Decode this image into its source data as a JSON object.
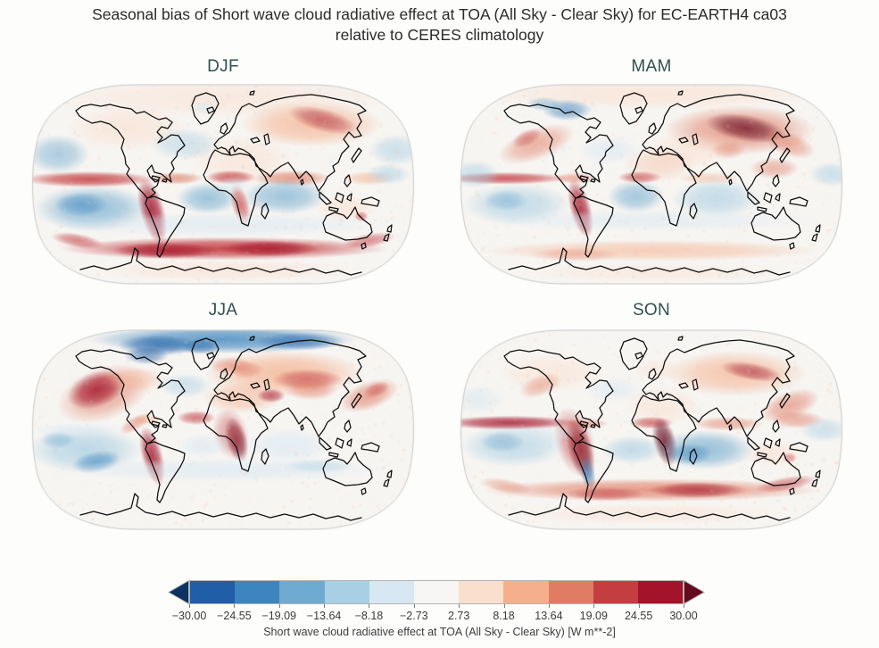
{
  "figure": {
    "title_line1": "Seasonal bias of Short wave cloud radiative effect at TOA (All Sky - Clear Sky) for EC-EARTH4 ca03",
    "title_line2": "relative to CERES climatology"
  },
  "seasons": [
    {
      "id": "djf",
      "label": "DJF"
    },
    {
      "id": "mam",
      "label": "MAM"
    },
    {
      "id": "jja",
      "label": "JJA"
    },
    {
      "id": "son",
      "label": "SON"
    }
  ],
  "colorbar": {
    "label": "Short wave cloud radiative effect at TOA (All Sky - Clear Sky) [W m**-2]",
    "ticks": [
      "−30.00",
      "−24.55",
      "−19.09",
      "−13.64",
      "−8.18",
      "−2.73",
      "2.73",
      "8.18",
      "13.64",
      "19.09",
      "24.55",
      "30.00"
    ],
    "under": "#0a3263",
    "over": "#670a1f",
    "segments": [
      "#205fa8",
      "#3c85bf",
      "#6fabd0",
      "#a8cfe4",
      "#d7e8f2",
      "#f7f6f5",
      "#fbdfcd",
      "#f5af8b",
      "#e07c64",
      "#c33d41",
      "#a31329"
    ],
    "title_color": "#31504e",
    "outline_color": "#c6c6c6"
  },
  "chart_data": {
    "type": "heatmap",
    "subtype": "global-map-bias",
    "projection": "Robinson",
    "title": "Seasonal bias of Short wave cloud radiative effect at TOA (All Sky - Clear Sky) for EC-EARTH4 ca03 relative to CERES climatology",
    "panels": [
      "DJF",
      "MAM",
      "JJA",
      "SON"
    ],
    "colorbar_ticks": [
      -30.0,
      -24.55,
      -19.09,
      -13.64,
      -8.18,
      -2.73,
      2.73,
      8.18,
      13.64,
      19.09,
      24.55,
      30.0
    ],
    "units": "W m**-2",
    "legend_position": "bottom",
    "colormap": "RdBu_r (discrete, extended both ends)",
    "field_blobs": {
      "djf": [
        [
          0.5,
          0.07,
          200,
          22,
          0,
          7,
          0.5
        ],
        [
          0.25,
          0.22,
          70,
          26,
          0,
          7,
          0.6
        ],
        [
          0.45,
          0.12,
          20,
          8,
          0,
          5,
          0.5
        ],
        [
          0.73,
          0.2,
          80,
          26,
          0,
          8,
          0.7
        ],
        [
          0.76,
          0.18,
          40,
          13,
          15,
          11,
          0.5
        ],
        [
          0.55,
          0.38,
          60,
          28,
          0,
          7,
          0.55
        ],
        [
          0.4,
          0.3,
          40,
          18,
          0,
          4,
          0.5
        ],
        [
          0.07,
          0.35,
          35,
          22,
          0,
          3,
          0.55
        ],
        [
          0.95,
          0.33,
          30,
          18,
          0,
          4,
          0.55
        ],
        [
          0.15,
          0.475,
          75,
          9,
          0,
          10,
          0.85
        ],
        [
          0.38,
          0.47,
          30,
          7,
          0,
          9,
          0.65
        ],
        [
          0.52,
          0.465,
          28,
          8,
          0,
          10,
          0.75
        ],
        [
          0.68,
          0.47,
          45,
          9,
          0,
          9,
          0.7
        ],
        [
          0.88,
          0.47,
          30,
          8,
          0,
          8,
          0.55
        ],
        [
          0.315,
          0.63,
          14,
          38,
          -15,
          11,
          0.85
        ],
        [
          0.545,
          0.6,
          10,
          24,
          -15,
          10,
          0.65
        ],
        [
          0.16,
          0.62,
          65,
          26,
          0,
          3,
          0.7
        ],
        [
          0.13,
          0.6,
          30,
          14,
          0,
          2,
          0.5
        ],
        [
          0.46,
          0.57,
          35,
          18,
          0,
          3,
          0.65
        ],
        [
          0.66,
          0.56,
          48,
          20,
          0,
          3,
          0.65
        ],
        [
          0.53,
          0.5,
          18,
          10,
          0,
          5,
          0.5
        ],
        [
          0.82,
          0.62,
          35,
          16,
          0,
          7,
          0.6
        ],
        [
          0.86,
          0.66,
          8,
          6,
          0,
          10,
          0.55
        ],
        [
          0.93,
          0.45,
          25,
          12,
          0,
          4,
          0.55
        ],
        [
          0.5,
          0.7,
          190,
          14,
          0,
          5,
          0.55
        ],
        [
          0.5,
          0.82,
          185,
          13,
          0,
          10,
          0.9
        ],
        [
          0.35,
          0.83,
          60,
          9,
          0,
          11,
          0.75
        ],
        [
          0.62,
          0.82,
          55,
          9,
          0,
          11,
          0.75
        ],
        [
          0.12,
          0.78,
          30,
          8,
          10,
          10,
          0.6
        ],
        [
          0.88,
          0.78,
          30,
          8,
          -10,
          10,
          0.55
        ],
        [
          0.5,
          0.93,
          150,
          12,
          0,
          7,
          0.55
        ]
      ],
      "mam": [
        [
          0.5,
          0.05,
          200,
          18,
          0,
          7,
          0.6
        ],
        [
          0.28,
          0.13,
          28,
          12,
          0,
          2,
          0.6
        ],
        [
          0.22,
          0.1,
          20,
          8,
          0,
          3,
          0.5
        ],
        [
          0.2,
          0.3,
          45,
          18,
          -20,
          9,
          0.55
        ],
        [
          0.175,
          0.27,
          18,
          9,
          -25,
          10,
          0.45
        ],
        [
          0.73,
          0.23,
          85,
          28,
          0,
          9,
          0.7
        ],
        [
          0.745,
          0.22,
          45,
          15,
          10,
          12,
          0.7
        ],
        [
          0.6,
          0.33,
          50,
          22,
          0,
          7,
          0.55
        ],
        [
          0.7,
          0.33,
          20,
          10,
          0,
          9,
          0.45
        ],
        [
          0.86,
          0.3,
          30,
          14,
          20,
          9,
          0.55
        ],
        [
          0.82,
          0.42,
          28,
          12,
          0,
          9,
          0.5
        ],
        [
          0.12,
          0.47,
          70,
          7,
          0,
          10,
          0.8
        ],
        [
          0.3,
          0.47,
          25,
          6,
          0,
          9,
          0.55
        ],
        [
          0.47,
          0.465,
          25,
          7,
          0,
          10,
          0.65
        ],
        [
          0.65,
          0.47,
          35,
          7,
          0,
          8,
          0.45
        ],
        [
          0.315,
          0.62,
          12,
          34,
          -15,
          11,
          0.8
        ],
        [
          0.39,
          0.33,
          35,
          16,
          0,
          5,
          0.55
        ],
        [
          0.04,
          0.45,
          28,
          16,
          0,
          4,
          0.55
        ],
        [
          0.97,
          0.45,
          25,
          14,
          0,
          4,
          0.55
        ],
        [
          0.15,
          0.6,
          60,
          24,
          0,
          4,
          0.65
        ],
        [
          0.12,
          0.58,
          25,
          12,
          0,
          3,
          0.45
        ],
        [
          0.46,
          0.56,
          32,
          18,
          0,
          3,
          0.6
        ],
        [
          0.67,
          0.57,
          50,
          22,
          0,
          4,
          0.65
        ],
        [
          0.5,
          0.68,
          190,
          12,
          0,
          5,
          0.5
        ],
        [
          0.5,
          0.83,
          190,
          12,
          0,
          8,
          0.55
        ],
        [
          0.3,
          0.85,
          50,
          8,
          0,
          9,
          0.35
        ],
        [
          0.5,
          0.94,
          150,
          10,
          0,
          7,
          0.45
        ],
        [
          0.52,
          0.4,
          40,
          20,
          0,
          8,
          0.35
        ]
      ],
      "jja": [
        [
          0.5,
          0.05,
          150,
          16,
          0,
          2,
          0.8
        ],
        [
          0.33,
          0.08,
          45,
          12,
          0,
          1,
          0.65
        ],
        [
          0.7,
          0.06,
          50,
          10,
          0,
          1,
          0.55
        ],
        [
          0.3,
          0.13,
          25,
          10,
          0,
          1,
          0.55
        ],
        [
          0.19,
          0.32,
          55,
          30,
          -20,
          9,
          0.6
        ],
        [
          0.17,
          0.3,
          34,
          20,
          -20,
          11,
          0.8
        ],
        [
          0.66,
          0.22,
          90,
          26,
          0,
          8,
          0.75
        ],
        [
          0.72,
          0.25,
          40,
          12,
          0,
          10,
          0.6
        ],
        [
          0.56,
          0.2,
          20,
          10,
          0,
          9,
          0.5
        ],
        [
          0.52,
          0.18,
          25,
          10,
          0,
          9,
          0.5
        ],
        [
          0.55,
          0.34,
          45,
          18,
          0,
          8,
          0.55
        ],
        [
          0.625,
          0.33,
          16,
          8,
          0,
          11,
          0.6
        ],
        [
          0.73,
          0.3,
          30,
          12,
          0,
          9,
          0.55
        ],
        [
          0.88,
          0.33,
          35,
          16,
          -20,
          9,
          0.65
        ],
        [
          0.9,
          0.3,
          15,
          8,
          -20,
          10,
          0.45
        ],
        [
          0.43,
          0.44,
          22,
          8,
          0,
          10,
          0.65
        ],
        [
          0.3,
          0.45,
          18,
          6,
          0,
          8,
          0.45
        ],
        [
          0.27,
          0.47,
          20,
          8,
          -30,
          9,
          0.5
        ],
        [
          0.535,
          0.55,
          12,
          26,
          -15,
          12,
          0.75
        ],
        [
          0.52,
          0.52,
          20,
          30,
          -15,
          10,
          0.45
        ],
        [
          0.315,
          0.63,
          12,
          34,
          -15,
          11,
          0.8
        ],
        [
          0.14,
          0.6,
          65,
          26,
          0,
          4,
          0.75
        ],
        [
          0.17,
          0.66,
          28,
          12,
          -10,
          2,
          0.6
        ],
        [
          0.07,
          0.55,
          20,
          10,
          0,
          3,
          0.45
        ],
        [
          0.45,
          0.58,
          30,
          14,
          0,
          5,
          0.55
        ],
        [
          0.67,
          0.58,
          50,
          20,
          0,
          5,
          0.6
        ],
        [
          0.5,
          0.7,
          190,
          13,
          0,
          5,
          0.6
        ],
        [
          0.75,
          0.68,
          40,
          8,
          0,
          4,
          0.45
        ],
        [
          0.4,
          0.28,
          30,
          14,
          0,
          4,
          0.5
        ],
        [
          0.12,
          0.5,
          55,
          8,
          0,
          5,
          0.5
        ],
        [
          0.27,
          0.25,
          35,
          14,
          0,
          8,
          0.45
        ],
        [
          0.44,
          0.085,
          22,
          9,
          0,
          1,
          0.5
        ]
      ],
      "son": [
        [
          0.5,
          0.05,
          180,
          15,
          0,
          6,
          0.5
        ],
        [
          0.24,
          0.22,
          60,
          22,
          0,
          7,
          0.55
        ],
        [
          0.21,
          0.28,
          25,
          12,
          -20,
          9,
          0.45
        ],
        [
          0.72,
          0.22,
          80,
          26,
          0,
          8,
          0.65
        ],
        [
          0.76,
          0.21,
          35,
          10,
          10,
          11,
          0.55
        ],
        [
          0.52,
          0.2,
          30,
          12,
          0,
          7,
          0.45
        ],
        [
          0.53,
          0.38,
          45,
          22,
          0,
          7,
          0.55
        ],
        [
          0.13,
          0.465,
          75,
          8,
          0,
          11,
          0.8
        ],
        [
          0.33,
          0.47,
          25,
          6,
          0,
          9,
          0.55
        ],
        [
          0.5,
          0.465,
          25,
          7,
          0,
          10,
          0.65
        ],
        [
          0.7,
          0.47,
          40,
          8,
          0,
          9,
          0.55
        ],
        [
          0.88,
          0.45,
          30,
          10,
          0,
          9,
          0.55
        ],
        [
          0.86,
          0.38,
          35,
          16,
          -20,
          9,
          0.6
        ],
        [
          0.315,
          0.6,
          14,
          36,
          -15,
          12,
          0.8
        ],
        [
          0.3,
          0.56,
          22,
          40,
          -15,
          10,
          0.55
        ],
        [
          0.335,
          0.72,
          8,
          20,
          -10,
          2,
          0.65
        ],
        [
          0.535,
          0.56,
          13,
          28,
          -15,
          12,
          0.8
        ],
        [
          0.14,
          0.58,
          60,
          24,
          0,
          4,
          0.65
        ],
        [
          0.11,
          0.56,
          25,
          12,
          0,
          3,
          0.45
        ],
        [
          0.45,
          0.6,
          35,
          16,
          0,
          4,
          0.65
        ],
        [
          0.64,
          0.6,
          55,
          22,
          0,
          3,
          0.7
        ],
        [
          0.6,
          0.62,
          25,
          12,
          0,
          2,
          0.5
        ],
        [
          0.82,
          0.62,
          35,
          15,
          0,
          7,
          0.6
        ],
        [
          0.86,
          0.64,
          8,
          6,
          0,
          10,
          0.45
        ],
        [
          0.5,
          0.8,
          190,
          13,
          0,
          9,
          0.75
        ],
        [
          0.62,
          0.8,
          55,
          9,
          0,
          11,
          0.65
        ],
        [
          0.38,
          0.82,
          45,
          8,
          0,
          10,
          0.55
        ],
        [
          0.85,
          0.77,
          35,
          8,
          -10,
          10,
          0.55
        ],
        [
          0.12,
          0.78,
          30,
          8,
          10,
          9,
          0.45
        ],
        [
          0.5,
          0.92,
          150,
          12,
          0,
          7,
          0.5
        ],
        [
          0.05,
          0.35,
          30,
          16,
          0,
          5,
          0.55
        ],
        [
          0.95,
          0.5,
          28,
          14,
          0,
          4,
          0.5
        ],
        [
          0.4,
          0.3,
          32,
          14,
          0,
          5,
          0.5
        ],
        [
          0.22,
          0.52,
          40,
          10,
          0,
          5,
          0.45
        ]
      ]
    }
  }
}
